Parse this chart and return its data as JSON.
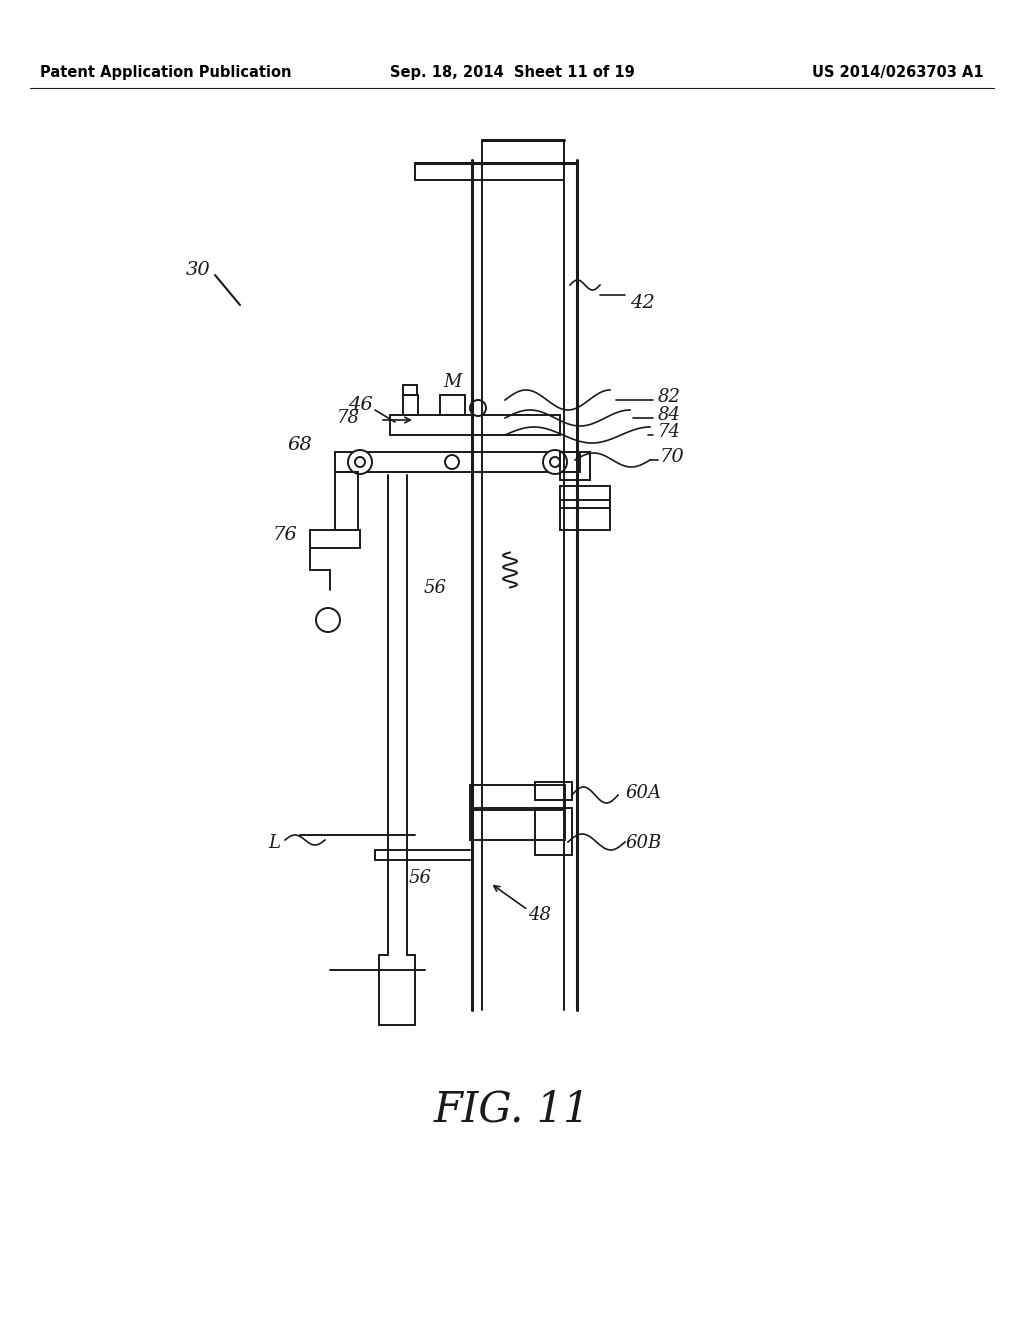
{
  "header_left": "Patent Application Publication",
  "header_center": "Sep. 18, 2014  Sheet 11 of 19",
  "header_right": "US 2014/0263703 A1",
  "figure_label": "FIG. 11",
  "background_color": "#ffffff",
  "line_color": "#1a1a1a",
  "label_color": "#1a1a1a"
}
